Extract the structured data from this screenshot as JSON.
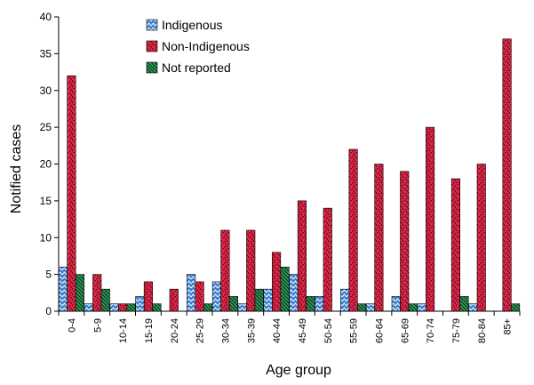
{
  "chart_data": {
    "type": "bar",
    "title": "",
    "xlabel": "Age group",
    "ylabel": "Notified cases",
    "ylim": [
      0,
      40
    ],
    "yticks": [
      0,
      5,
      10,
      15,
      20,
      25,
      30,
      35,
      40
    ],
    "grid": false,
    "legend_position": "top-center",
    "categories": [
      "0-4",
      "5-9",
      "10-14",
      "15-19",
      "20-24",
      "25-29",
      "30-34",
      "35-39",
      "40-44",
      "45-49",
      "50-54",
      "55-59",
      "60-64",
      "65-69",
      "70-74",
      "75-79",
      "80-84",
      "85+"
    ],
    "series": [
      {
        "name": "Indigenous",
        "color": "#3a7fcf",
        "pattern": "zigzag",
        "values": [
          6,
          1,
          1,
          2,
          0,
          5,
          4,
          1,
          3,
          5,
          2,
          3,
          1,
          2,
          1,
          0,
          1,
          0
        ]
      },
      {
        "name": "Non-Indigenous",
        "color": "#e8264a",
        "pattern": "speckle",
        "values": [
          32,
          5,
          1,
          4,
          3,
          4,
          11,
          11,
          8,
          15,
          14,
          22,
          20,
          19,
          25,
          18,
          20,
          37
        ]
      },
      {
        "name": "Not reported",
        "color": "#2e9a5c",
        "pattern": "diagonal",
        "values": [
          5,
          3,
          1,
          1,
          0,
          1,
          2,
          3,
          6,
          2,
          0,
          1,
          0,
          1,
          0,
          2,
          0,
          1
        ]
      }
    ]
  }
}
